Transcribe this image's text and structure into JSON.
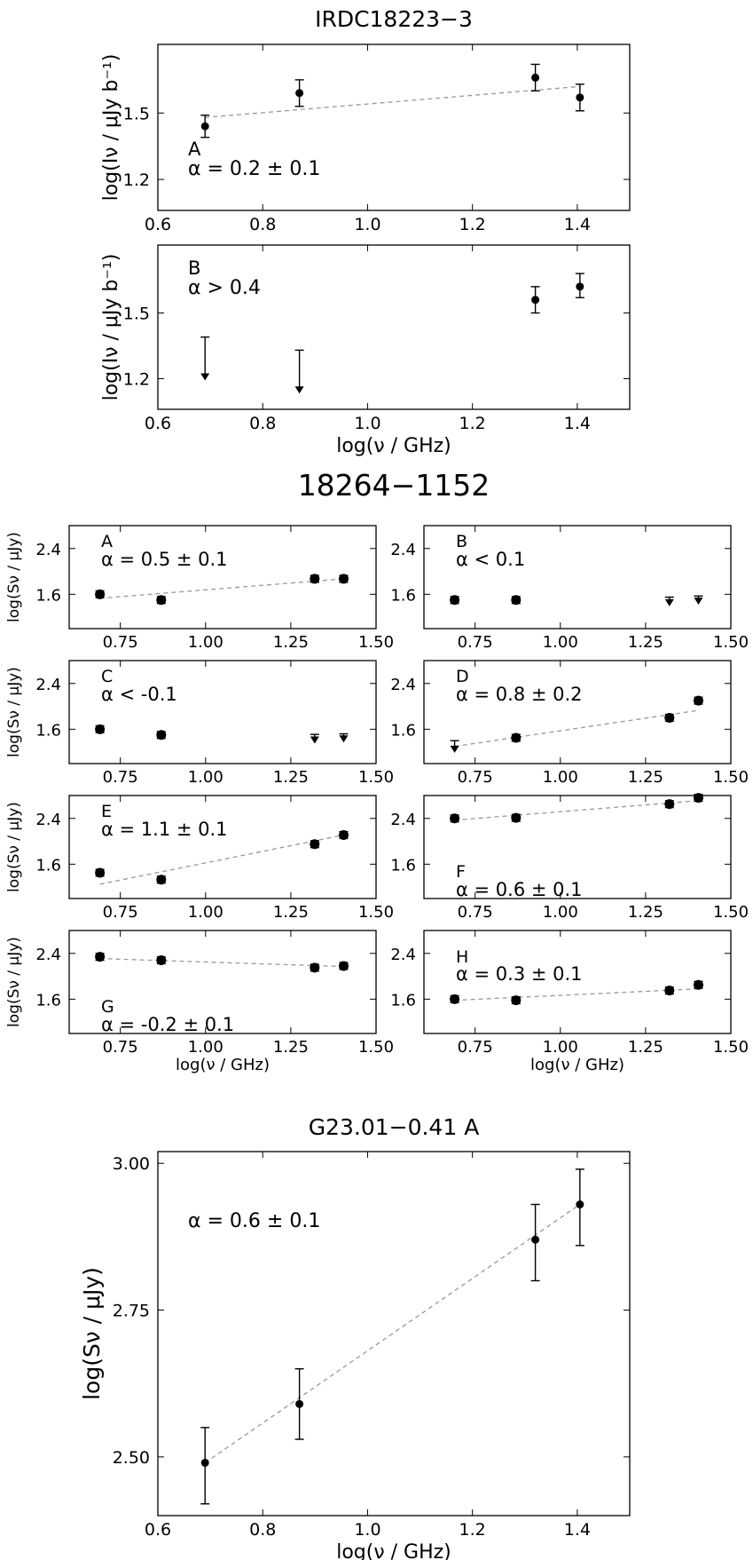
{
  "chart_data": [
    {
      "type": "scatter",
      "group": 0,
      "title": "IRDC18223−3",
      "panel_label": "A",
      "alpha_text": "α = 0.2 ± 0.1",
      "xlabel": "",
      "ylabel": "log(Iν / μJy b⁻¹)",
      "xlim": [
        0.6,
        1.5
      ],
      "ylim": [
        1.06,
        1.81
      ],
      "xticks": [
        0.6,
        0.8,
        1.0,
        1.2,
        1.4
      ],
      "xtick_labels": [
        "0.6",
        "0.8",
        "1.0",
        "1.2",
        "1.4"
      ],
      "yticks": [
        1.2,
        1.5
      ],
      "ytick_labels": [
        "1.2",
        "1.5"
      ],
      "points": [
        {
          "x": 0.69,
          "y": 1.44,
          "lo": 1.39,
          "hi": 1.49,
          "limit": "none"
        },
        {
          "x": 0.87,
          "y": 1.59,
          "lo": 1.53,
          "hi": 1.65,
          "limit": "none"
        },
        {
          "x": 1.32,
          "y": 1.66,
          "lo": 1.6,
          "hi": 1.72,
          "limit": "none"
        },
        {
          "x": 1.405,
          "y": 1.57,
          "lo": 1.51,
          "hi": 1.63,
          "limit": "none"
        }
      ],
      "fit": [
        [
          0.69,
          1.48
        ],
        [
          1.405,
          1.62
        ]
      ]
    },
    {
      "type": "scatter",
      "group": 0,
      "panel_label": "B",
      "alpha_text": "α > 0.4",
      "xlabel": "log(ν / GHz)",
      "ylabel": "log(Iν / μJy b⁻¹)",
      "xlim": [
        0.6,
        1.5
      ],
      "ylim": [
        1.06,
        1.81
      ],
      "xticks": [
        0.6,
        0.8,
        1.0,
        1.2,
        1.4
      ],
      "xtick_labels": [
        "0.6",
        "0.8",
        "1.0",
        "1.2",
        "1.4"
      ],
      "yticks": [
        1.2,
        1.5
      ],
      "ytick_labels": [
        "1.2",
        "1.5"
      ],
      "points": [
        {
          "x": 0.69,
          "y": 1.39,
          "lo": 1.2,
          "hi": 1.39,
          "limit": "upper"
        },
        {
          "x": 0.87,
          "y": 1.33,
          "lo": 1.14,
          "hi": 1.33,
          "limit": "upper"
        },
        {
          "x": 1.32,
          "y": 1.56,
          "lo": 1.5,
          "hi": 1.62,
          "limit": "none"
        },
        {
          "x": 1.405,
          "y": 1.62,
          "lo": 1.57,
          "hi": 1.68,
          "limit": "none"
        }
      ],
      "fit": []
    },
    {
      "type": "scatter",
      "group": 1,
      "title": "18264−1152",
      "panel_label": "A",
      "alpha_text": "α = 0.5 ± 0.1",
      "xlabel": "",
      "ylabel": "log(Sν / μJy)",
      "xlim": [
        0.6,
        1.5
      ],
      "ylim": [
        1.0,
        2.8
      ],
      "xticks": [
        0.75,
        1.0,
        1.25,
        1.5
      ],
      "xtick_labels": [
        "0.75",
        "1.00",
        "1.25",
        "1.50"
      ],
      "yticks": [
        1.6,
        2.4
      ],
      "ytick_labels": [
        "1.6",
        "2.4"
      ],
      "points": [
        {
          "x": 0.69,
          "y": 1.6,
          "lo": 1.54,
          "hi": 1.66,
          "limit": "none"
        },
        {
          "x": 0.87,
          "y": 1.5,
          "lo": 1.44,
          "hi": 1.56,
          "limit": "none"
        },
        {
          "x": 1.32,
          "y": 1.87,
          "lo": 1.81,
          "hi": 1.93,
          "limit": "none"
        },
        {
          "x": 1.405,
          "y": 1.87,
          "lo": 1.81,
          "hi": 1.93,
          "limit": "none"
        }
      ],
      "fit": [
        [
          0.69,
          1.53
        ],
        [
          1.405,
          1.87
        ]
      ]
    },
    {
      "type": "scatter",
      "group": 1,
      "panel_label": "B",
      "alpha_text": "α < 0.1",
      "xlabel": "",
      "ylabel": "",
      "xlim": [
        0.6,
        1.5
      ],
      "ylim": [
        1.0,
        2.8
      ],
      "xticks": [
        0.75,
        1.0,
        1.25,
        1.5
      ],
      "xtick_labels": [
        "0.75",
        "1.00",
        "1.25",
        "1.50"
      ],
      "yticks": [
        1.6,
        2.4
      ],
      "ytick_labels": [
        "1.6",
        "2.4"
      ],
      "points": [
        {
          "x": 0.69,
          "y": 1.5,
          "lo": 1.44,
          "hi": 1.56,
          "limit": "none"
        },
        {
          "x": 0.87,
          "y": 1.5,
          "lo": 1.44,
          "hi": 1.56,
          "limit": "none"
        },
        {
          "x": 1.32,
          "y": 1.55,
          "lo": 1.42,
          "hi": 1.55,
          "limit": "upper"
        },
        {
          "x": 1.405,
          "y": 1.57,
          "lo": 1.45,
          "hi": 1.57,
          "limit": "upper"
        }
      ],
      "fit": []
    },
    {
      "type": "scatter",
      "group": 1,
      "panel_label": "C",
      "alpha_text": "α < -0.1",
      "xlabel": "",
      "ylabel": "log(Sν / μJy)",
      "xlim": [
        0.6,
        1.5
      ],
      "ylim": [
        1.0,
        2.8
      ],
      "xticks": [
        0.75,
        1.0,
        1.25,
        1.5
      ],
      "xtick_labels": [
        "0.75",
        "1.00",
        "1.25",
        "1.50"
      ],
      "yticks": [
        1.6,
        2.4
      ],
      "ytick_labels": [
        "1.6",
        "2.4"
      ],
      "points": [
        {
          "x": 0.69,
          "y": 1.6,
          "lo": 1.54,
          "hi": 1.66,
          "limit": "none"
        },
        {
          "x": 0.87,
          "y": 1.5,
          "lo": 1.44,
          "hi": 1.56,
          "limit": "none"
        },
        {
          "x": 1.32,
          "y": 1.51,
          "lo": 1.38,
          "hi": 1.51,
          "limit": "upper"
        },
        {
          "x": 1.405,
          "y": 1.52,
          "lo": 1.4,
          "hi": 1.52,
          "limit": "upper"
        }
      ],
      "fit": []
    },
    {
      "type": "scatter",
      "group": 1,
      "panel_label": "D",
      "alpha_text": "α = 0.8 ± 0.2",
      "xlabel": "",
      "ylabel": "",
      "xlim": [
        0.6,
        1.5
      ],
      "ylim": [
        1.0,
        2.8
      ],
      "xticks": [
        0.75,
        1.0,
        1.25,
        1.5
      ],
      "xtick_labels": [
        "0.75",
        "1.00",
        "1.25",
        "1.50"
      ],
      "yticks": [
        1.6,
        2.4
      ],
      "ytick_labels": [
        "1.6",
        "2.4"
      ],
      "points": [
        {
          "x": 0.69,
          "y": 1.4,
          "lo": 1.22,
          "hi": 1.4,
          "limit": "upper"
        },
        {
          "x": 0.87,
          "y": 1.45,
          "lo": 1.39,
          "hi": 1.51,
          "limit": "none"
        },
        {
          "x": 1.32,
          "y": 1.8,
          "lo": 1.74,
          "hi": 1.86,
          "limit": "none"
        },
        {
          "x": 1.405,
          "y": 2.1,
          "lo": 2.04,
          "hi": 2.16,
          "limit": "none"
        }
      ],
      "fit": [
        [
          0.69,
          1.3
        ],
        [
          1.405,
          1.93
        ]
      ]
    },
    {
      "type": "scatter",
      "group": 1,
      "panel_label": "E",
      "alpha_text": "α = 1.1 ± 0.1",
      "xlabel": "",
      "ylabel": "log(Sν / μJy)",
      "xlim": [
        0.6,
        1.5
      ],
      "ylim": [
        1.0,
        2.8
      ],
      "xticks": [
        0.75,
        1.0,
        1.25,
        1.5
      ],
      "xtick_labels": [
        "0.75",
        "1.00",
        "1.25",
        "1.50"
      ],
      "yticks": [
        1.6,
        2.4
      ],
      "ytick_labels": [
        "1.6",
        "2.4"
      ],
      "points": [
        {
          "x": 0.69,
          "y": 1.45,
          "lo": 1.39,
          "hi": 1.51,
          "limit": "none"
        },
        {
          "x": 0.87,
          "y": 1.33,
          "lo": 1.27,
          "hi": 1.39,
          "limit": "none"
        },
        {
          "x": 1.32,
          "y": 1.95,
          "lo": 1.89,
          "hi": 2.01,
          "limit": "none"
        },
        {
          "x": 1.405,
          "y": 2.11,
          "lo": 2.05,
          "hi": 2.17,
          "limit": "none"
        }
      ],
      "fit": [
        [
          0.69,
          1.25
        ],
        [
          1.405,
          2.11
        ]
      ]
    },
    {
      "type": "scatter",
      "group": 1,
      "panel_label": "F",
      "alpha_text": "α = 0.6 ± 0.1",
      "xlabel": "",
      "ylabel": "",
      "xlim": [
        0.6,
        1.5
      ],
      "ylim": [
        1.0,
        2.8
      ],
      "xticks": [
        0.75,
        1.0,
        1.25,
        1.5
      ],
      "xtick_labels": [
        "0.75",
        "1.00",
        "1.25",
        "1.50"
      ],
      "yticks": [
        1.6,
        2.4
      ],
      "ytick_labels": [
        "1.6",
        "2.4"
      ],
      "points": [
        {
          "x": 0.69,
          "y": 2.4,
          "lo": 2.34,
          "hi": 2.46,
          "limit": "none"
        },
        {
          "x": 0.87,
          "y": 2.41,
          "lo": 2.35,
          "hi": 2.47,
          "limit": "none"
        },
        {
          "x": 1.32,
          "y": 2.65,
          "lo": 2.59,
          "hi": 2.71,
          "limit": "none"
        },
        {
          "x": 1.405,
          "y": 2.76,
          "lo": 2.7,
          "hi": 2.82,
          "limit": "none"
        }
      ],
      "fit": [
        [
          0.69,
          2.37
        ],
        [
          1.405,
          2.71
        ]
      ]
    },
    {
      "type": "scatter",
      "group": 1,
      "panel_label": "G",
      "alpha_text": "α = -0.2 ± 0.1",
      "xlabel": "log(ν / GHz)",
      "ylabel": "log(Sν / μJy)",
      "xlim": [
        0.6,
        1.5
      ],
      "ylim": [
        1.0,
        2.8
      ],
      "xticks": [
        0.75,
        1.0,
        1.25,
        1.5
      ],
      "xtick_labels": [
        "0.75",
        "1.00",
        "1.25",
        "1.50"
      ],
      "yticks": [
        1.6,
        2.4
      ],
      "ytick_labels": [
        "1.6",
        "2.4"
      ],
      "points": [
        {
          "x": 0.69,
          "y": 2.34,
          "lo": 2.28,
          "hi": 2.4,
          "limit": "none"
        },
        {
          "x": 0.87,
          "y": 2.28,
          "lo": 2.22,
          "hi": 2.34,
          "limit": "none"
        },
        {
          "x": 1.32,
          "y": 2.15,
          "lo": 2.09,
          "hi": 2.21,
          "limit": "none"
        },
        {
          "x": 1.405,
          "y": 2.18,
          "lo": 2.12,
          "hi": 2.24,
          "limit": "none"
        }
      ],
      "fit": [
        [
          0.69,
          2.31
        ],
        [
          1.405,
          2.17
        ]
      ]
    },
    {
      "type": "scatter",
      "group": 1,
      "panel_label": "H",
      "alpha_text": "α = 0.3 ± 0.1",
      "xlabel": "log(ν / GHz)",
      "ylabel": "",
      "xlim": [
        0.6,
        1.5
      ],
      "ylim": [
        1.0,
        2.8
      ],
      "xticks": [
        0.75,
        1.0,
        1.25,
        1.5
      ],
      "xtick_labels": [
        "0.75",
        "1.00",
        "1.25",
        "1.50"
      ],
      "yticks": [
        1.6,
        2.4
      ],
      "ytick_labels": [
        "1.6",
        "2.4"
      ],
      "points": [
        {
          "x": 0.69,
          "y": 1.6,
          "lo": 1.54,
          "hi": 1.66,
          "limit": "none"
        },
        {
          "x": 0.87,
          "y": 1.58,
          "lo": 1.52,
          "hi": 1.64,
          "limit": "none"
        },
        {
          "x": 1.32,
          "y": 1.75,
          "lo": 1.69,
          "hi": 1.81,
          "limit": "none"
        },
        {
          "x": 1.405,
          "y": 1.85,
          "lo": 1.79,
          "hi": 1.91,
          "limit": "none"
        }
      ],
      "fit": [
        [
          0.69,
          1.58
        ],
        [
          1.405,
          1.78
        ]
      ]
    },
    {
      "type": "scatter",
      "group": 2,
      "title": "G23.01−0.41 A",
      "panel_label": "",
      "alpha_text": "α = 0.6 ± 0.1",
      "xlabel": "log(ν / GHz)",
      "ylabel": "log(Sν / μJy)",
      "xlim": [
        0.6,
        1.5
      ],
      "ylim": [
        2.4,
        3.02
      ],
      "xticks": [
        0.6,
        0.8,
        1.0,
        1.2,
        1.4
      ],
      "xtick_labels": [
        "0.6",
        "0.8",
        "1.0",
        "1.2",
        "1.4"
      ],
      "yticks": [
        2.5,
        2.75,
        3.0
      ],
      "ytick_labels": [
        "2.50",
        "2.75",
        "3.00"
      ],
      "points": [
        {
          "x": 0.69,
          "y": 2.49,
          "lo": 2.42,
          "hi": 2.55,
          "limit": "none"
        },
        {
          "x": 0.87,
          "y": 2.59,
          "lo": 2.53,
          "hi": 2.65,
          "limit": "none"
        },
        {
          "x": 1.32,
          "y": 2.87,
          "lo": 2.8,
          "hi": 2.93,
          "limit": "none"
        },
        {
          "x": 1.405,
          "y": 2.93,
          "lo": 2.86,
          "hi": 2.99,
          "limit": "none"
        }
      ],
      "fit": [
        [
          0.69,
          2.49
        ],
        [
          1.405,
          2.93
        ]
      ]
    }
  ]
}
